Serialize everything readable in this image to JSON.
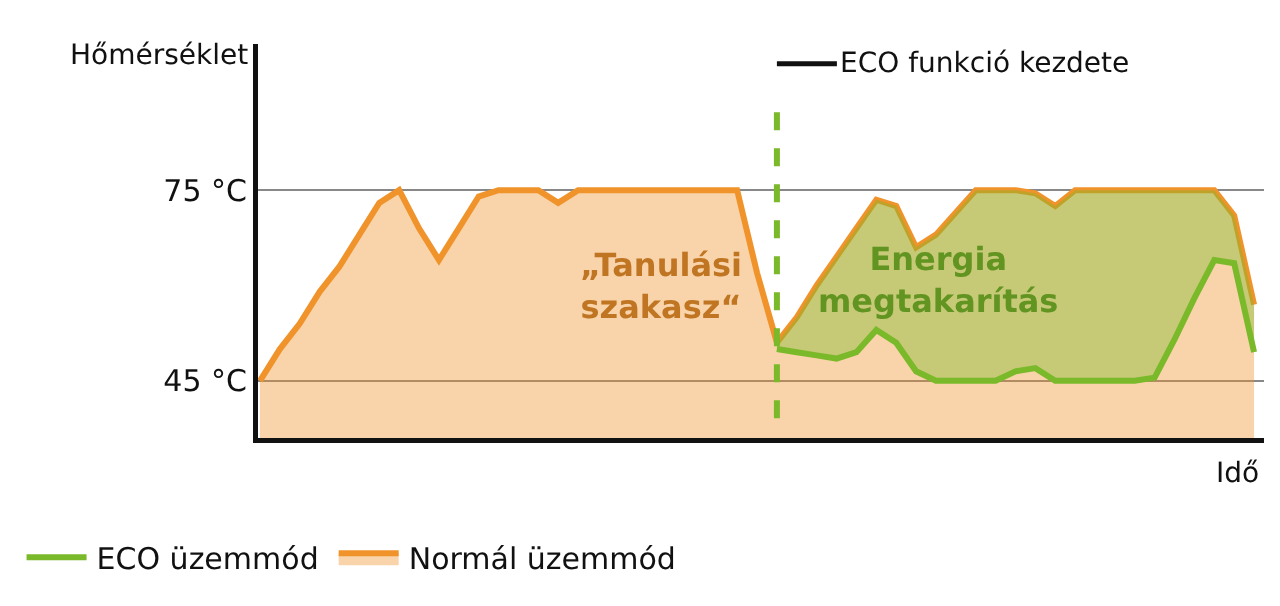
{
  "chart_data": {
    "type": "area",
    "xlabel": "Idő",
    "ylabel": "Hőmérséklet",
    "categories": [
      null,
      null,
      null,
      null,
      null,
      null,
      null,
      null,
      null,
      null,
      null,
      null,
      null,
      null,
      null,
      null,
      null,
      null,
      null,
      null,
      null,
      null,
      null,
      null,
      null,
      null,
      null,
      null,
      null,
      null,
      null,
      null,
      null,
      null,
      null,
      null,
      null,
      null,
      null,
      null,
      null,
      null,
      null,
      null,
      null,
      null,
      null,
      null,
      null,
      null,
      null
    ],
    "ylim": [
      36,
      98
    ],
    "yticks": [
      {
        "value": 45,
        "label": "45 °C"
      },
      {
        "value": 75,
        "label": "75 °C"
      }
    ],
    "series": [
      {
        "name": "Normál üzemmód",
        "color": "#f0932b",
        "values": [
          45,
          50,
          54,
          59,
          63,
          68,
          73,
          75,
          69,
          64,
          69,
          74,
          75,
          75,
          75,
          73,
          75,
          75,
          75,
          75,
          75,
          75,
          75,
          75,
          75,
          62,
          51,
          55,
          60,
          64.5,
          69,
          73.5,
          72.5,
          66,
          68,
          71.5,
          75,
          75,
          75,
          74.5,
          72.5,
          75,
          75,
          75,
          75,
          75,
          75,
          75,
          75,
          71,
          57
        ]
      },
      {
        "name": "ECO üzemmód",
        "type": "line",
        "color": "#7ab929",
        "values": [
          null,
          null,
          null,
          null,
          null,
          null,
          null,
          null,
          null,
          null,
          null,
          null,
          null,
          null,
          null,
          null,
          null,
          null,
          null,
          null,
          null,
          null,
          null,
          null,
          null,
          null,
          50,
          49.5,
          49,
          48.5,
          49.5,
          53,
          51,
          46.5,
          45,
          45,
          45,
          45,
          46.5,
          47,
          45,
          45,
          45,
          45,
          45,
          45.5,
          51.5,
          58,
          64,
          63.5,
          49.5
        ],
        "lower": [
          null,
          null,
          null,
          null,
          null,
          null,
          null,
          null,
          null,
          null,
          null,
          null,
          null,
          null,
          null,
          null,
          null,
          null,
          null,
          null,
          null,
          null,
          null,
          null,
          null,
          null,
          50,
          49.5,
          49,
          48.5,
          49.5,
          53,
          51,
          46.5,
          45,
          45,
          45,
          45,
          46.5,
          47,
          45,
          45,
          45,
          45,
          45,
          45.5,
          51.5,
          58,
          64,
          63.5,
          49.5
        ],
        "upper": [
          null,
          null,
          null,
          null,
          null,
          null,
          null,
          null,
          null,
          null,
          null,
          null,
          null,
          null,
          null,
          null,
          null,
          null,
          null,
          null,
          null,
          null,
          null,
          null,
          null,
          null,
          51,
          55,
          60,
          64.5,
          69,
          73.5,
          72.5,
          66,
          68,
          71.5,
          75,
          75,
          75,
          74.5,
          72.5,
          75,
          75,
          75,
          75,
          75,
          75,
          75,
          75,
          71,
          57
        ]
      }
    ],
    "ref_lines": [
      {
        "axis": "x",
        "label": "ECO funkció kezdete",
        "color": "#7ab929",
        "line_style": "dashed"
      }
    ],
    "annotations": [
      "„Tanulási szakasz“",
      "Energia megtakarítás"
    ],
    "grid": "y",
    "legend": "bottom",
    "tick_labels": "y",
    "marker": "none",
    "line_style": "solid"
  }
}
